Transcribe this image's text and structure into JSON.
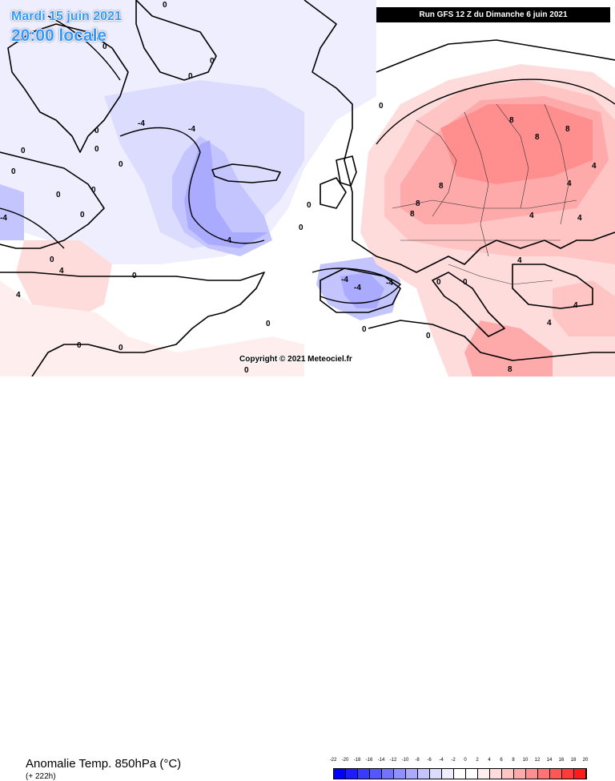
{
  "header": {
    "date": "Mardi 15 juin 2021",
    "local_time": "20:00 locale",
    "run": "Run GFS 12 Z du Dimanche 6 juin 2021"
  },
  "copyright": "Copyright © 2021 Meteociel.fr",
  "footer": {
    "variable": "Anomalie Temp. 850hPa (°C)",
    "lead_time": "(+ 222h)"
  },
  "legend": {
    "ticks": [
      "-22",
      "-20",
      "-18",
      "-16",
      "-14",
      "-12",
      "-10",
      "-8",
      "-6",
      "-4",
      "-2",
      "0",
      "2",
      "4",
      "6",
      "8",
      "10",
      "12",
      "14",
      "16",
      "18",
      "20"
    ],
    "colors": [
      "#0000ff",
      "#1c1cff",
      "#3a3aff",
      "#5656ff",
      "#7373ff",
      "#8f8fff",
      "#aaaaff",
      "#c4c4ff",
      "#dcdcff",
      "#eeeeff",
      "#ffffff",
      "#ffffff",
      "#ffeeee",
      "#ffdcdc",
      "#ffc4c4",
      "#ffaaaa",
      "#ff8f8f",
      "#ff7373",
      "#ff5656",
      "#ff3a3a",
      "#ff1c1c"
    ]
  },
  "contour_labels": [
    "0",
    "0",
    "0",
    "0",
    "0",
    "0",
    "0",
    "0",
    "0",
    "0",
    "0",
    "0",
    "0",
    "0",
    "0",
    "0",
    "0",
    "0",
    "0",
    "0",
    "0",
    "0",
    "0",
    "0",
    "0",
    "-4",
    "-4",
    "-4",
    "-4",
    "-4",
    "-4",
    "-4",
    "4",
    "4",
    "4",
    "4",
    "4",
    "4",
    "4",
    "4",
    "4",
    "8",
    "8",
    "8",
    "8",
    "8",
    "8",
    "8"
  ]
}
